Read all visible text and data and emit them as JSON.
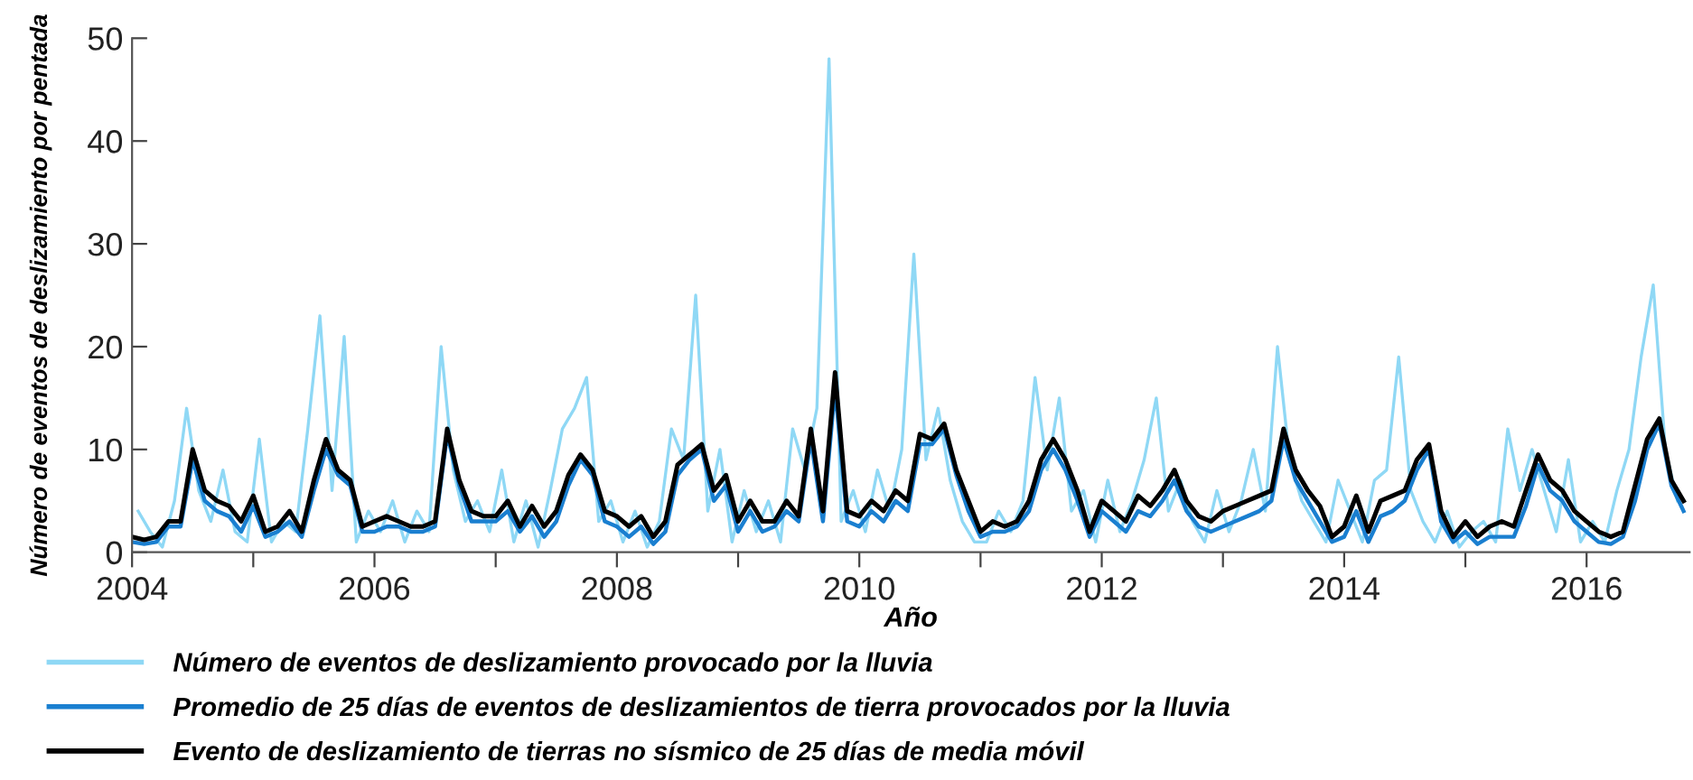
{
  "chart_data": {
    "type": "line",
    "xlabel": "Año",
    "ylabel": "Número de eventos de deslizamiento por pentada",
    "xlim": [
      2004,
      2016.85
    ],
    "ylim": [
      0,
      50
    ],
    "xticks": [
      2004,
      {
        "value": 2005,
        "label": null
      },
      2006,
      {
        "value": 2007,
        "label": null
      },
      2008,
      {
        "value": 2009,
        "label": null
      },
      2010,
      {
        "value": 2011,
        "label": null
      },
      2012,
      {
        "value": 2013,
        "label": null
      },
      2014,
      {
        "value": 2015,
        "label": null
      },
      2016
    ],
    "yticks": [
      0,
      10,
      20,
      30,
      40,
      50
    ],
    "grid": false,
    "legend": "bottom",
    "marker": "none",
    "line_style": "solid",
    "x": [
      2004.0,
      2004.1,
      2004.2,
      2004.3,
      2004.4,
      2004.5,
      2004.6,
      2004.7,
      2004.8,
      2004.9,
      2005.0,
      2005.1,
      2005.2,
      2005.3,
      2005.4,
      2005.5,
      2005.6,
      2005.7,
      2005.8,
      2005.9,
      2006.0,
      2006.1,
      2006.2,
      2006.3,
      2006.4,
      2006.5,
      2006.6,
      2006.7,
      2006.8,
      2006.9,
      2007.0,
      2007.1,
      2007.2,
      2007.3,
      2007.4,
      2007.5,
      2007.6,
      2007.7,
      2007.8,
      2007.9,
      2008.0,
      2008.1,
      2008.2,
      2008.3,
      2008.4,
      2008.5,
      2008.6,
      2008.7,
      2008.8,
      2008.9,
      2009.0,
      2009.1,
      2009.2,
      2009.3,
      2009.4,
      2009.5,
      2009.6,
      2009.7,
      2009.8,
      2009.9,
      2010.0,
      2010.1,
      2010.2,
      2010.3,
      2010.4,
      2010.5,
      2010.6,
      2010.7,
      2010.8,
      2010.9,
      2011.0,
      2011.1,
      2011.2,
      2011.3,
      2011.4,
      2011.5,
      2011.6,
      2011.7,
      2011.8,
      2011.9,
      2012.0,
      2012.1,
      2012.2,
      2012.3,
      2012.4,
      2012.5,
      2012.6,
      2012.7,
      2012.8,
      2012.9,
      2013.0,
      2013.1,
      2013.2,
      2013.3,
      2013.4,
      2013.5,
      2013.6,
      2013.7,
      2013.8,
      2013.9,
      2014.0,
      2014.1,
      2014.2,
      2014.3,
      2014.4,
      2014.5,
      2014.6,
      2014.7,
      2014.8,
      2014.9,
      2015.0,
      2015.1,
      2015.2,
      2015.3,
      2015.4,
      2015.5,
      2015.6,
      2015.7,
      2015.8,
      2015.9,
      2016.0,
      2016.1,
      2016.2,
      2016.3,
      2016.4,
      2016.5,
      2016.6,
      2016.7,
      2016.8
    ],
    "series": [
      {
        "name": "Número de eventos de deslizamiento provocado por la lluvia",
        "color": "#8fd8f5",
        "x": [
          2004.05,
          2004.15,
          2004.25,
          2004.35,
          2004.45,
          2004.55,
          2004.65,
          2004.75,
          2004.85,
          2004.95,
          2005.05,
          2005.15,
          2005.25,
          2005.35,
          2005.45,
          2005.55,
          2005.65,
          2005.75,
          2005.85,
          2005.95,
          2006.05,
          2006.15,
          2006.25,
          2006.35,
          2006.45,
          2006.55,
          2006.65,
          2006.75,
          2006.85,
          2006.95,
          2007.05,
          2007.15,
          2007.25,
          2007.35,
          2007.45,
          2007.55,
          2007.65,
          2007.75,
          2007.85,
          2007.95,
          2008.05,
          2008.15,
          2008.25,
          2008.35,
          2008.45,
          2008.55,
          2008.65,
          2008.75,
          2008.85,
          2008.95,
          2009.05,
          2009.15,
          2009.25,
          2009.35,
          2009.45,
          2009.55,
          2009.65,
          2009.75,
          2009.85,
          2009.95,
          2010.05,
          2010.15,
          2010.25,
          2010.35,
          2010.45,
          2010.55,
          2010.65,
          2010.75,
          2010.85,
          2010.95,
          2011.05,
          2011.15,
          2011.25,
          2011.35,
          2011.45,
          2011.55,
          2011.65,
          2011.75,
          2011.85,
          2011.95,
          2012.05,
          2012.15,
          2012.25,
          2012.35,
          2012.45,
          2012.55,
          2012.65,
          2012.75,
          2012.85,
          2012.95,
          2013.05,
          2013.15,
          2013.25,
          2013.35,
          2013.45,
          2013.55,
          2013.65,
          2013.75,
          2013.85,
          2013.95,
          2014.05,
          2014.15,
          2014.25,
          2014.35,
          2014.45,
          2014.55,
          2014.65,
          2014.75,
          2014.85,
          2014.95,
          2015.05,
          2015.15,
          2015.25,
          2015.35,
          2015.45,
          2015.55,
          2015.65,
          2015.75,
          2015.85,
          2015.95,
          2016.05,
          2016.15,
          2016.25,
          2016.35,
          2016.45,
          2016.55,
          2016.65,
          2016.75
        ],
        "values": [
          4,
          2,
          0.5,
          5,
          14,
          6,
          3,
          8,
          2,
          1,
          11,
          1,
          3,
          2,
          12,
          23,
          6,
          21,
          1,
          4,
          2,
          5,
          1,
          4,
          2,
          20,
          8,
          3,
          5,
          2,
          8,
          1,
          5,
          0.5,
          6,
          12,
          14,
          17,
          3,
          5,
          1,
          4,
          0.5,
          3,
          12,
          9,
          25,
          4,
          10,
          1,
          6,
          2,
          5,
          1,
          12,
          8,
          14,
          48,
          3,
          6,
          2,
          8,
          4,
          10,
          29,
          9,
          14,
          7,
          3,
          1,
          1,
          4,
          2,
          5,
          17,
          8,
          15,
          4,
          6,
          1,
          7,
          2,
          5,
          9,
          15,
          4,
          7,
          3,
          1,
          6,
          2,
          5,
          10,
          4,
          20,
          9,
          5,
          3,
          1,
          7,
          4,
          1,
          7,
          8,
          19,
          6,
          3,
          1,
          4,
          0.5,
          2,
          3,
          1,
          12,
          6,
          10,
          6,
          2,
          9,
          1,
          3,
          1,
          6,
          10,
          19,
          26,
          10,
          5
        ]
      },
      {
        "name": "Promedio de 25 días de eventos de deslizamientos de tierra provocados por la lluvia",
        "color": "#1a7fd0",
        "values": [
          1,
          0.8,
          1,
          2.5,
          2.5,
          9,
          5,
          4,
          3.5,
          2,
          4.5,
          1.5,
          2,
          3,
          1.5,
          6,
          10,
          7.5,
          6.5,
          2,
          2,
          2.5,
          2.5,
          2,
          2,
          2.5,
          11.5,
          6.5,
          3,
          3,
          3,
          4,
          2,
          3.5,
          1.5,
          3,
          6.5,
          9,
          7.5,
          3,
          2.5,
          1.5,
          2.5,
          0.8,
          2,
          7.5,
          9,
          10,
          5,
          6.5,
          2,
          4,
          2,
          2.5,
          4,
          3,
          11,
          3,
          16,
          3,
          2.5,
          4,
          3,
          5,
          4,
          10.5,
          10.5,
          12,
          7.5,
          4,
          1.5,
          2,
          2,
          2.5,
          4,
          8,
          10,
          8,
          5,
          1.5,
          4,
          3,
          2,
          4,
          3.5,
          5,
          7,
          4,
          2.5,
          2,
          2.5,
          3,
          3.5,
          4,
          5,
          11,
          7,
          5,
          3,
          1,
          1.5,
          4,
          1,
          3.5,
          4,
          5,
          8,
          10,
          3,
          1,
          2,
          0.8,
          1.5,
          1.5,
          1.5,
          4.5,
          8.5,
          6,
          5,
          3,
          2,
          1,
          0.8,
          1.5,
          5,
          10,
          12.5,
          6.5,
          4
        ]
      },
      {
        "name": "Evento de deslizamiento de tierras no sísmico de 25 días de media móvil",
        "color": "#000000",
        "values": [
          1.5,
          1.2,
          1.5,
          3,
          3,
          10,
          6,
          5,
          4.5,
          3,
          5.5,
          2,
          2.5,
          4,
          2,
          7,
          11,
          8,
          7,
          2.5,
          3,
          3.5,
          3,
          2.5,
          2.5,
          3,
          12,
          7,
          4,
          3.5,
          3.5,
          5,
          2.5,
          4.5,
          2.5,
          4,
          7.5,
          9.5,
          8,
          4,
          3.5,
          2.5,
          3.5,
          1.5,
          3,
          8.5,
          9.5,
          10.5,
          6,
          7.5,
          3,
          5,
          3,
          3,
          5,
          3.5,
          12,
          4,
          17.5,
          4,
          3.5,
          5,
          4,
          6,
          5,
          11.5,
          11,
          12.5,
          8,
          5,
          2,
          3,
          2.5,
          3,
          5,
          9,
          11,
          9,
          6,
          2,
          5,
          4,
          3,
          5.5,
          4.5,
          6,
          8,
          5,
          3.5,
          3,
          4,
          4.5,
          5,
          5.5,
          6,
          12,
          8,
          6,
          4.5,
          1.5,
          2.5,
          5.5,
          2,
          5,
          5.5,
          6,
          9,
          10.5,
          4,
          1.5,
          3,
          1.5,
          2.5,
          3,
          2.5,
          6,
          9.5,
          7,
          6,
          4,
          3,
          2,
          1.5,
          2,
          6.5,
          11,
          13,
          7,
          5
        ]
      }
    ]
  }
}
